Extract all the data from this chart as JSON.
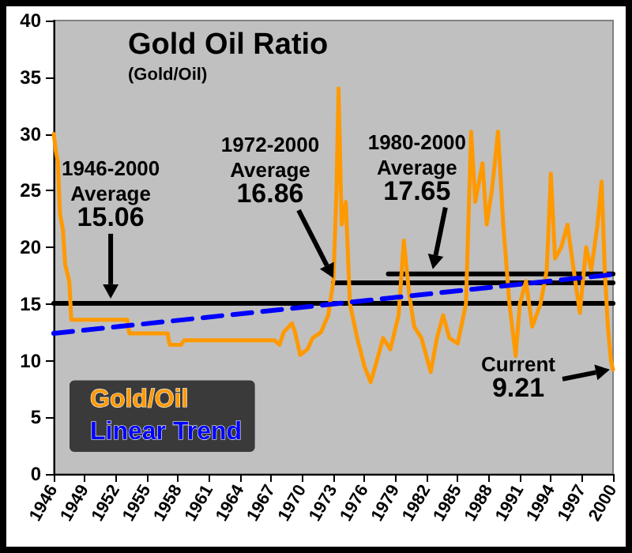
{
  "chart_data": {
    "type": "line",
    "title": "Gold Oil Ratio",
    "subtitle": "(Gold/Oil)",
    "xlim": [
      1946,
      2000
    ],
    "xticks": [
      1946,
      1949,
      1952,
      1955,
      1958,
      1961,
      1964,
      1967,
      1970,
      1973,
      1976,
      1979,
      1982,
      1985,
      1988,
      1991,
      1994,
      1997,
      2000
    ],
    "ylim": [
      0,
      40
    ],
    "yticks": [
      0,
      5,
      10,
      15,
      20,
      25,
      30,
      35,
      40
    ],
    "grid": false,
    "legend": "bottom left",
    "marker": "none",
    "series": [
      {
        "name": "Gold/Oil",
        "color": "#ff9900",
        "x": [
          1946,
          1946.2,
          1946.4,
          1946.6,
          1946.9,
          1947.1,
          1947.5,
          1947.7,
          1953.1,
          1953.3,
          1957,
          1957.2,
          1958.3,
          1958.6,
          1966.5,
          1967.3,
          1967.8,
          1968.2,
          1969,
          1969.3,
          1969.8,
          1970.5,
          1971,
          1971.8,
          1972.5,
          1973,
          1973.3,
          1973.5,
          1973.8,
          1974.2,
          1974.6,
          1975.3,
          1976,
          1976.6,
          1977.2,
          1977.8,
          1978.5,
          1979.3,
          1979.8,
          1980.3,
          1980.8,
          1981.5,
          1982.4,
          1983,
          1983.6,
          1984.2,
          1985,
          1985.8,
          1986.3,
          1986.7,
          1987.4,
          1987.8,
          1988.3,
          1988.9,
          1989.4,
          1990,
          1990.6,
          1991,
          1991.6,
          1992.2,
          1993,
          1993.6,
          1994,
          1994.4,
          1995,
          1995.6,
          1996.2,
          1996.8,
          1997.4,
          1997.9,
          1998.5,
          1998.9,
          1999.2,
          1999.5,
          1999.8,
          2000
        ],
        "values": [
          30,
          28.5,
          27.5,
          23,
          21.5,
          18.5,
          17,
          13.6,
          13.6,
          12.4,
          12.4,
          11.4,
          11.4,
          11.8,
          11.8,
          11.8,
          11.4,
          12.5,
          13.3,
          12.5,
          10.5,
          11,
          12,
          12.5,
          14,
          17,
          25,
          34,
          22,
          24,
          15,
          12,
          9.5,
          8.1,
          10,
          12,
          11,
          14,
          20.6,
          16,
          13,
          12,
          9,
          12,
          14,
          12,
          11.5,
          15,
          30.2,
          24,
          27.4,
          22,
          25,
          30.2,
          22,
          15,
          10.4,
          15,
          17,
          13,
          15,
          18,
          26.5,
          19,
          20,
          22,
          18,
          14.2,
          20,
          18,
          22,
          25.8,
          18,
          13,
          10,
          9.21
        ]
      },
      {
        "name": "Linear Trend",
        "color": "#0000ff",
        "line_style": "dashed",
        "x": [
          1946,
          2000
        ],
        "values": [
          12.4,
          17.6
        ]
      },
      {
        "color": "#000000",
        "x": [
          1946,
          2000
        ],
        "values": [
          15.06,
          15.06
        ]
      },
      {
        "color": "#000000",
        "x": [
          1973,
          2000
        ],
        "values": [
          16.86,
          16.86
        ]
      },
      {
        "color": "#000000",
        "x": [
          1978.3,
          2000
        ],
        "values": [
          17.65,
          17.65
        ]
      }
    ],
    "annotations": [
      {
        "text": "1946-2000\nAverage\n15.06",
        "x": 1951.5,
        "y": 15.06
      },
      {
        "text": "1972-2000\nAverage\n16.86",
        "x": 1973,
        "y": 16.86
      },
      {
        "text": "1980-2000\nAverage\n17.65",
        "x": 1982.6,
        "y": 17.65
      },
      {
        "text": "Current\n9.21",
        "x": 2000,
        "y": 9.21
      }
    ]
  }
}
